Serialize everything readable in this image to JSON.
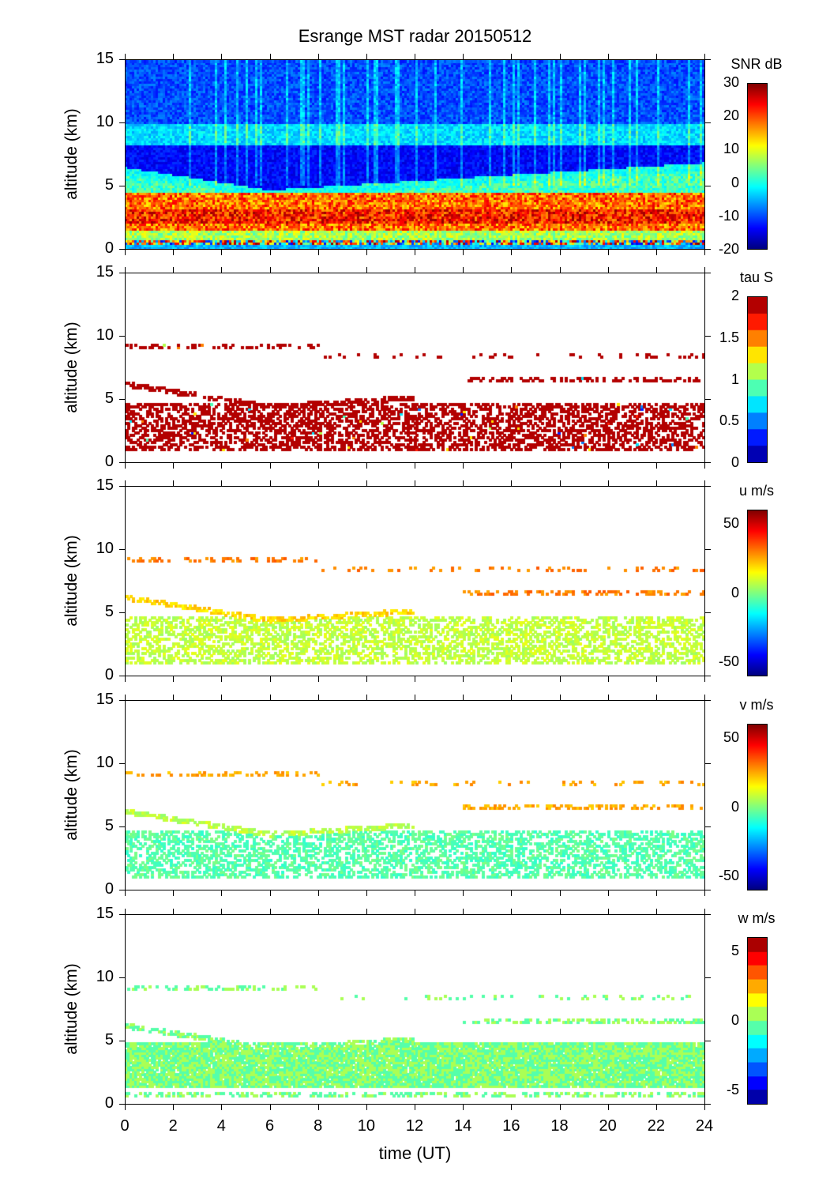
{
  "chart_data": {
    "type": "heatmap",
    "title": "Esrange MST radar 20150512",
    "xlabel": "time (UT)",
    "ylabel": "altitude (km)",
    "xlim": [
      0,
      24
    ],
    "ylim": [
      0,
      15
    ],
    "xticks": [
      0,
      2,
      4,
      6,
      8,
      10,
      12,
      14,
      16,
      18,
      20,
      22,
      24
    ],
    "yticks": [
      0,
      5,
      10,
      15
    ],
    "panels": [
      {
        "name": "snr",
        "colorbar_label": "SNR dB",
        "clim": [
          -20,
          30
        ],
        "cticks": [
          -20,
          -10,
          0,
          10,
          20,
          30
        ],
        "levels": 0,
        "features": {
          "main_layer_km": [
            1.5,
            4.5
          ],
          "main_layer_value": 20,
          "upper_band_km": [
            8.2,
            10
          ],
          "upper_band_value": -2,
          "background_value": -12
        }
      },
      {
        "name": "tau",
        "colorbar_label": "tau S",
        "clim": [
          0,
          2
        ],
        "cticks": [
          0,
          0.5,
          1,
          1.5,
          2
        ],
        "levels": 10,
        "features": {
          "typical_value": 2
        }
      },
      {
        "name": "u",
        "colorbar_label": "u m/s",
        "clim": [
          -60,
          60
        ],
        "cticks": [
          -50,
          0,
          50
        ],
        "levels": 0,
        "features": {
          "main_layer_value": 8,
          "upper_value": 30
        }
      },
      {
        "name": "v",
        "colorbar_label": "v m/s",
        "clim": [
          -60,
          60
        ],
        "cticks": [
          -50,
          0,
          50
        ],
        "levels": 0,
        "features": {
          "main_layer_value": -5,
          "upper_value": 25
        }
      },
      {
        "name": "w",
        "colorbar_label": "w m/s",
        "clim": [
          -6,
          6
        ],
        "cticks": [
          -5,
          0,
          5
        ],
        "levels": 12,
        "features": {
          "main_layer_value": 0
        }
      }
    ]
  }
}
